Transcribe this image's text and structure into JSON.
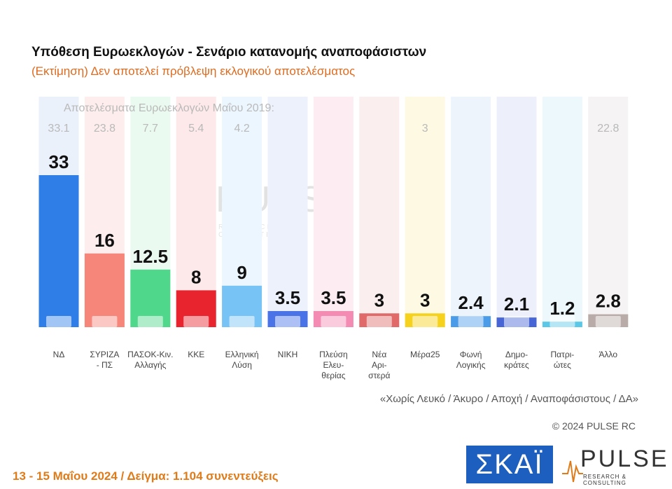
{
  "header": {
    "title": "Υπόθεση Ευρωεκλογών - Σενάριο κατανομής αναποφάσιστων",
    "subtitle": "(Εκτίμηση)   Δεν αποτελεί πρόβλεψη εκλογικού αποτελέσματος",
    "prev_results_label": "Αποτελέσματα Ευρωεκλογών Μαΐου 2019:"
  },
  "chart_data": {
    "type": "bar",
    "title": "Υπόθεση Ευρωεκλογών - Σενάριο κατανομής αναποφάσιστων",
    "subtitle": "(Εκτίμηση)   Δεν αποτελεί πρόβλεψη εκλογικού αποτελέσματος",
    "ylim": [
      0,
      33
    ],
    "grid": false,
    "categories": [
      {
        "label": "ΝΔ",
        "value": "33",
        "prev": "33.1",
        "color": "#2f7ee8",
        "bg": "#eaf1fb"
      },
      {
        "label": "ΣΥΡΙΖΑ\n- ΠΣ",
        "value": "16",
        "prev": "23.8",
        "color": "#f6857a",
        "bg": "#fdeeed"
      },
      {
        "label": "ΠΑΣΟΚ-Κιν.\nΑλλαγής",
        "value": "12.5",
        "prev": "7.7",
        "color": "#4fd88b",
        "bg": "#eafaf0"
      },
      {
        "label": "ΚΚΕ",
        "value": "8",
        "prev": "5.4",
        "color": "#e8252e",
        "bg": "#fde9ea"
      },
      {
        "label": "Ελληνική\nΛύση",
        "value": "9",
        "prev": "4.2",
        "color": "#78c3f5",
        "bg": "#ecf6fe"
      },
      {
        "label": "ΝΙΚΗ",
        "value": "3.5",
        "prev": "",
        "color": "#4a73e8",
        "bg": "#edf1fc"
      },
      {
        "label": "Πλεύση\nΕλευ-\nθερίας",
        "value": "3.5",
        "prev": "",
        "color": "#f38bb3",
        "bg": "#fdedf3"
      },
      {
        "label": "Νέα\nΑρι-\nστερά",
        "value": "3",
        "prev": "",
        "color": "#e06a6a",
        "bg": "#fbeeee"
      },
      {
        "label": "Μέρα25",
        "value": "3",
        "prev": "3",
        "color": "#f7d21d",
        "bg": "#fef9e3"
      },
      {
        "label": "Φωνή\nΛογικής",
        "value": "2.4",
        "prev": "",
        "color": "#4a9be8",
        "bg": "#edf4fc"
      },
      {
        "label": "Δημο-\nκράτες",
        "value": "2.1",
        "prev": "",
        "color": "#4865d6",
        "bg": "#edf0fb"
      },
      {
        "label": "Πατρι-\nώτες",
        "value": "1.2",
        "prev": "",
        "color": "#5cc8e8",
        "bg": "#edf8fc"
      },
      {
        "label": "Άλλο",
        "value": "2.8",
        "prev": "22.8",
        "color": "#b8aba8",
        "bg": "#f5f3f3"
      }
    ]
  },
  "notes": {
    "excluding": "«Χωρίς Λευκό / Άκυρο / Αποχή / Αναποφάσιστους / ΔΑ»",
    "copyright": "© 2024 PULSE RC",
    "dates_sample": "13 - 15 Μαΐου 2024  /  Δείγμα:  1.104 συνεντεύξεις"
  },
  "logos": {
    "skai": "ΣΚΑΪ",
    "pulse": "PULSE",
    "pulse_sub": "RESEARCH & CONSULTING"
  }
}
